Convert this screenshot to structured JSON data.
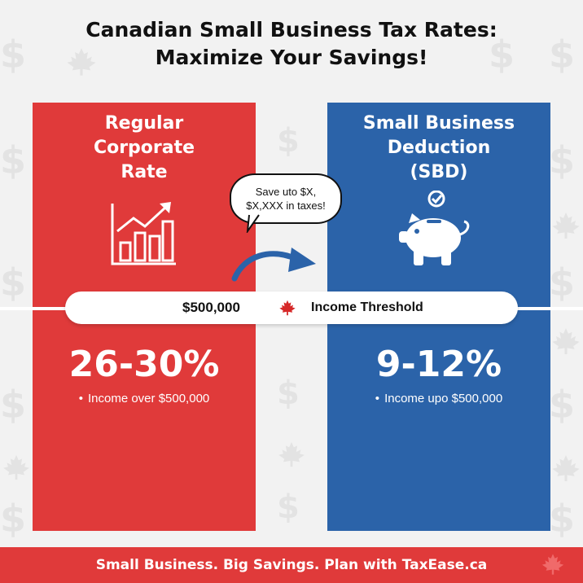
{
  "title": {
    "line1": "Canadian Small Business Tax Rates:",
    "line2": "Maximize Your Savings!"
  },
  "regular": {
    "heading_lines": [
      "Regular",
      "Corporate",
      "Rate"
    ],
    "rate": "26-30%",
    "note": "Income over $500,000",
    "icon": "bar-chart-growth-icon",
    "color": "#e03a3a"
  },
  "sbd": {
    "heading_lines": [
      "Small Business",
      "Deduction",
      "(SBD)"
    ],
    "rate": "9-12%",
    "note": "Income upo $500,000",
    "icon": "piggy-bank-icon",
    "color": "#2b63a9"
  },
  "bubble": {
    "line1": "Save uto $X,",
    "line2": "$X,XXX in taxes!"
  },
  "threshold": {
    "amount": "$500,000",
    "label": "Income Threshold",
    "icon": "maple-leaf-icon"
  },
  "footer": {
    "text": "Small Business. Big Savings. Plan with TaxEase.ca",
    "icon": "maple-leaf-icon"
  },
  "background": {
    "pattern_icons": [
      "dollar-sign-icon",
      "maple-leaf-icon"
    ]
  }
}
